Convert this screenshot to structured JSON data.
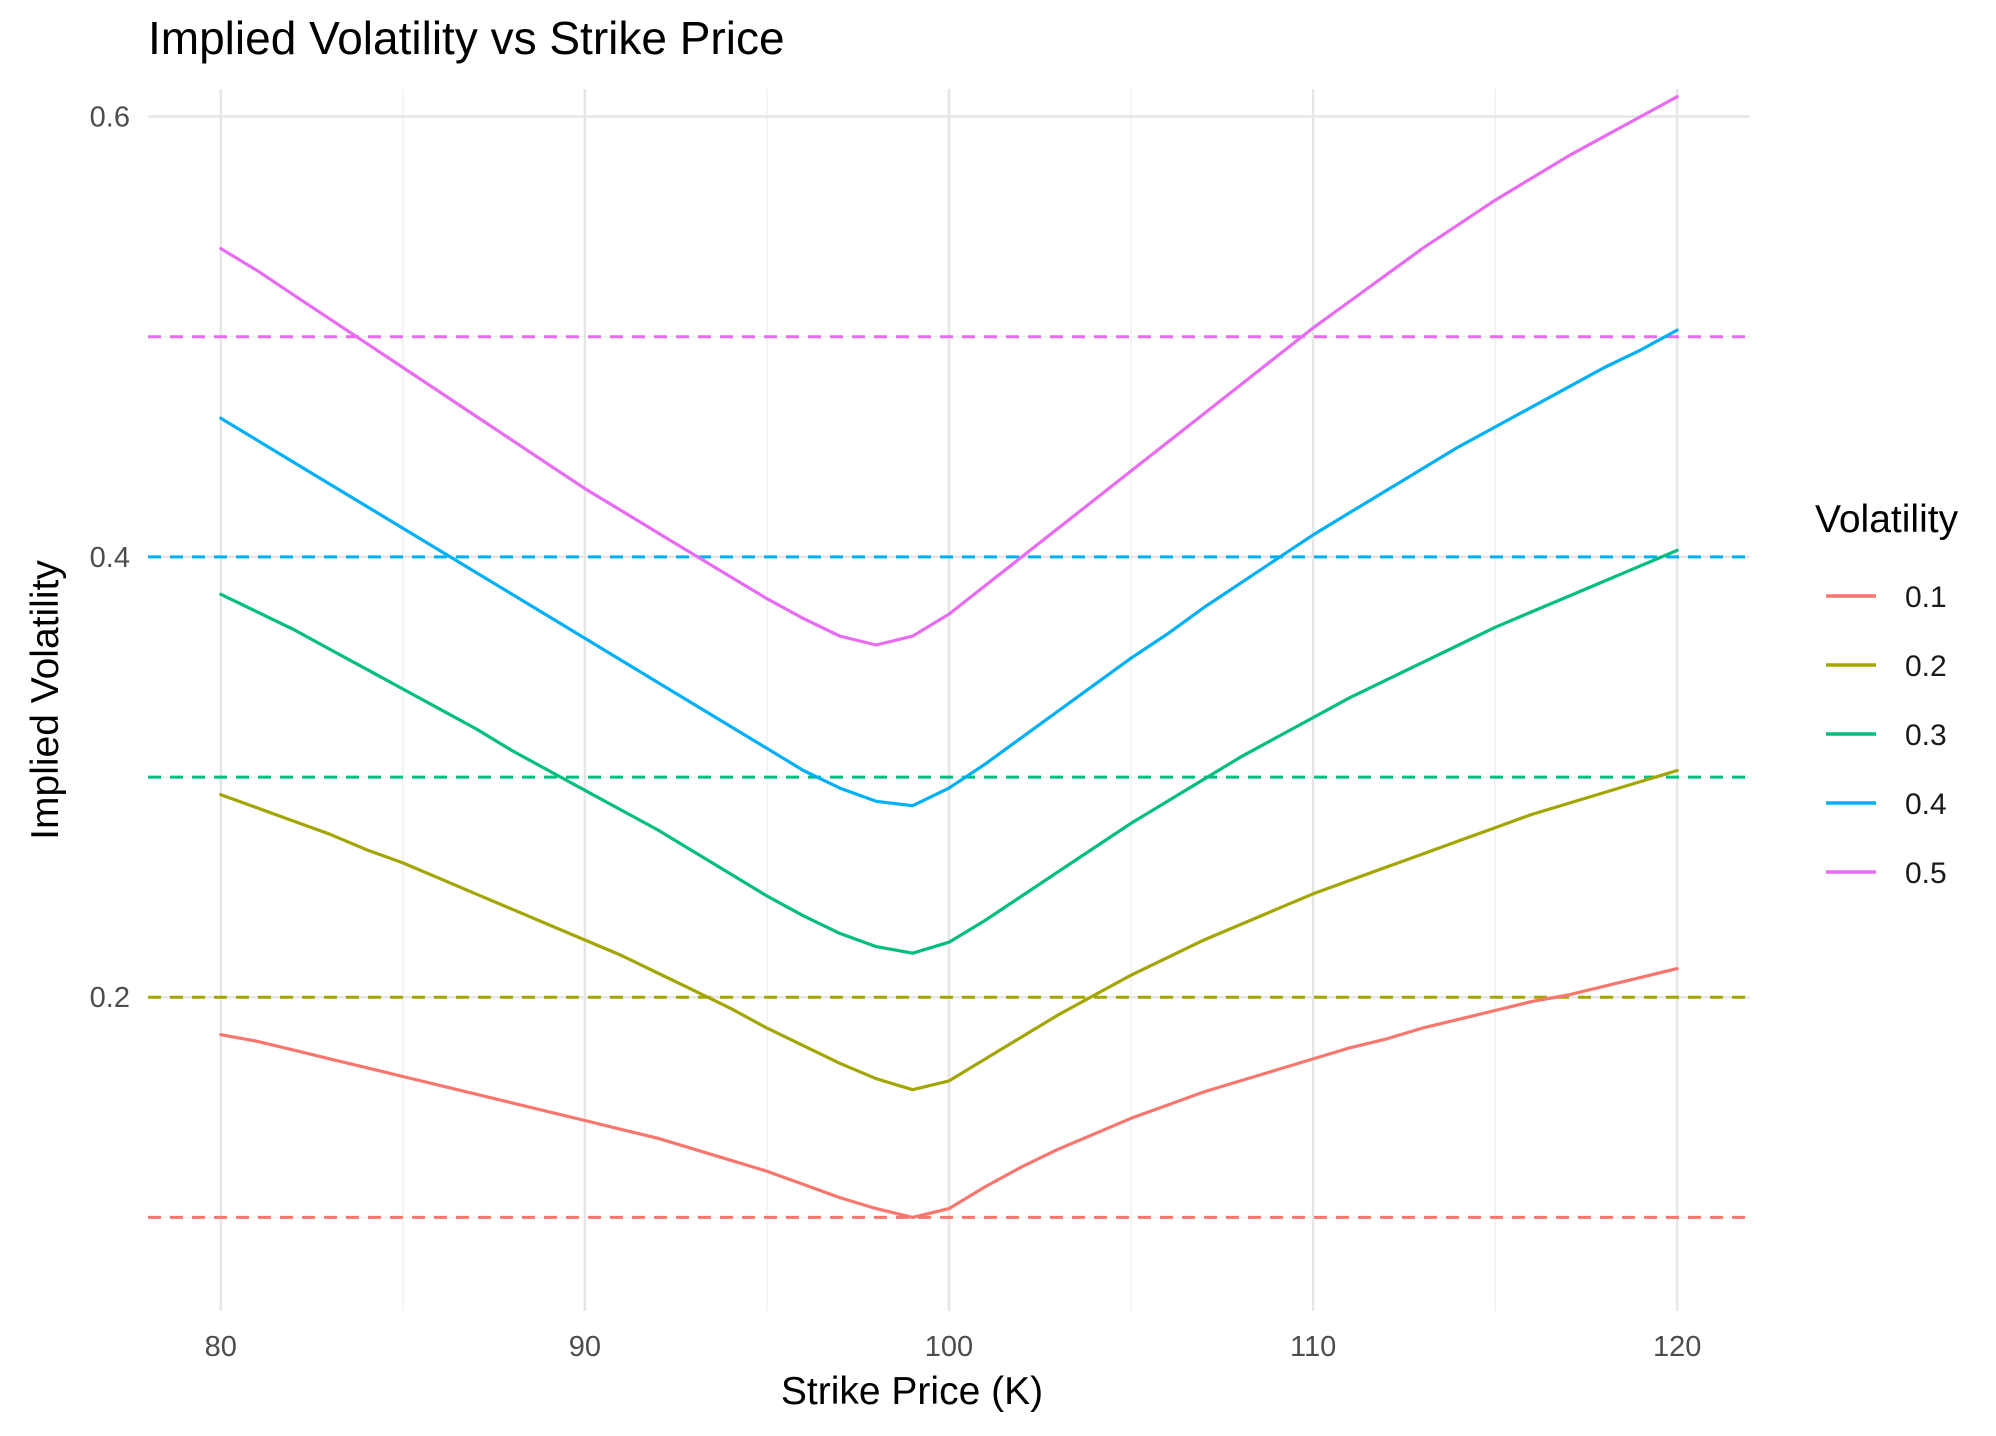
{
  "chart_data": {
    "type": "line",
    "title": "Implied Volatility vs Strike Price",
    "xlabel": "Strike Price (K)",
    "ylabel": "Implied Volatility",
    "xlim": [
      78,
      122
    ],
    "ylim": [
      0.0575,
      0.6125
    ],
    "x_ticks": [
      80,
      90,
      100,
      110,
      120
    ],
    "x_tick_labels": [
      "80",
      "90",
      "100",
      "110",
      "120"
    ],
    "x_minor_ticks": [
      85,
      95,
      105,
      115
    ],
    "y_ticks": [
      0.2,
      0.4,
      0.6
    ],
    "y_tick_labels": [
      "0.2",
      "0.4",
      "0.6"
    ],
    "y_minor_ticks": [
      0.1,
      0.3,
      0.5
    ],
    "grid": true,
    "legend_title": "Volatility",
    "legend_position": "right",
    "series": [
      {
        "name": "0.1",
        "color": "#F8766D",
        "reference_level": 0.1,
        "points": [
          [
            80,
            0.183
          ],
          [
            81,
            0.18
          ],
          [
            82,
            0.176
          ],
          [
            83,
            0.172
          ],
          [
            84,
            0.168
          ],
          [
            85,
            0.164
          ],
          [
            86,
            0.16
          ],
          [
            87,
            0.156
          ],
          [
            88,
            0.152
          ],
          [
            89,
            0.148
          ],
          [
            90,
            0.144
          ],
          [
            91,
            0.14
          ],
          [
            92,
            0.136
          ],
          [
            93,
            0.131
          ],
          [
            94,
            0.126
          ],
          [
            95,
            0.121
          ],
          [
            96,
            0.115
          ],
          [
            97,
            0.109
          ],
          [
            98,
            0.104
          ],
          [
            99,
            0.1
          ],
          [
            100,
            0.104
          ],
          [
            101,
            0.114
          ],
          [
            102,
            0.123
          ],
          [
            103,
            0.131
          ],
          [
            104,
            0.138
          ],
          [
            105,
            0.145
          ],
          [
            106,
            0.151
          ],
          [
            107,
            0.157
          ],
          [
            108,
            0.162
          ],
          [
            109,
            0.167
          ],
          [
            110,
            0.172
          ],
          [
            111,
            0.177
          ],
          [
            112,
            0.181
          ],
          [
            113,
            0.186
          ],
          [
            114,
            0.19
          ],
          [
            115,
            0.194
          ],
          [
            116,
            0.198
          ],
          [
            117,
            0.201
          ],
          [
            118,
            0.205
          ],
          [
            119,
            0.209
          ],
          [
            120,
            0.213
          ]
        ]
      },
      {
        "name": "0.2",
        "color": "#A3A500",
        "reference_level": 0.2,
        "points": [
          [
            80,
            0.292
          ],
          [
            81,
            0.286
          ],
          [
            82,
            0.28
          ],
          [
            83,
            0.274
          ],
          [
            84,
            0.267
          ],
          [
            85,
            0.261
          ],
          [
            86,
            0.254
          ],
          [
            87,
            0.247
          ],
          [
            88,
            0.24
          ],
          [
            89,
            0.233
          ],
          [
            90,
            0.226
          ],
          [
            91,
            0.219
          ],
          [
            92,
            0.211
          ],
          [
            93,
            0.203
          ],
          [
            94,
            0.195
          ],
          [
            95,
            0.186
          ],
          [
            96,
            0.178
          ],
          [
            97,
            0.17
          ],
          [
            98,
            0.163
          ],
          [
            99,
            0.158
          ],
          [
            100,
            0.162
          ],
          [
            101,
            0.172
          ],
          [
            102,
            0.182
          ],
          [
            103,
            0.192
          ],
          [
            104,
            0.201
          ],
          [
            105,
            0.21
          ],
          [
            106,
            0.218
          ],
          [
            107,
            0.226
          ],
          [
            108,
            0.233
          ],
          [
            109,
            0.24
          ],
          [
            110,
            0.247
          ],
          [
            111,
            0.253
          ],
          [
            112,
            0.259
          ],
          [
            113,
            0.265
          ],
          [
            114,
            0.271
          ],
          [
            115,
            0.277
          ],
          [
            116,
            0.283
          ],
          [
            117,
            0.288
          ],
          [
            118,
            0.293
          ],
          [
            119,
            0.298
          ],
          [
            120,
            0.303
          ]
        ]
      },
      {
        "name": "0.3",
        "color": "#00BF7D",
        "reference_level": 0.3,
        "points": [
          [
            80,
            0.383
          ],
          [
            81,
            0.375
          ],
          [
            82,
            0.367
          ],
          [
            83,
            0.358
          ],
          [
            84,
            0.349
          ],
          [
            85,
            0.34
          ],
          [
            86,
            0.331
          ],
          [
            87,
            0.322
          ],
          [
            88,
            0.312
          ],
          [
            89,
            0.303
          ],
          [
            90,
            0.294
          ],
          [
            91,
            0.285
          ],
          [
            92,
            0.276
          ],
          [
            93,
            0.266
          ],
          [
            94,
            0.256
          ],
          [
            95,
            0.246
          ],
          [
            96,
            0.237
          ],
          [
            97,
            0.229
          ],
          [
            98,
            0.223
          ],
          [
            99,
            0.22
          ],
          [
            100,
            0.225
          ],
          [
            101,
            0.235
          ],
          [
            102,
            0.246
          ],
          [
            103,
            0.257
          ],
          [
            104,
            0.268
          ],
          [
            105,
            0.279
          ],
          [
            106,
            0.289
          ],
          [
            107,
            0.299
          ],
          [
            108,
            0.309
          ],
          [
            109,
            0.318
          ],
          [
            110,
            0.327
          ],
          [
            111,
            0.336
          ],
          [
            112,
            0.344
          ],
          [
            113,
            0.352
          ],
          [
            114,
            0.36
          ],
          [
            115,
            0.368
          ],
          [
            116,
            0.375
          ],
          [
            117,
            0.382
          ],
          [
            118,
            0.389
          ],
          [
            119,
            0.396
          ],
          [
            120,
            0.403
          ]
        ]
      },
      {
        "name": "0.4",
        "color": "#00B0F6",
        "reference_level": 0.4,
        "points": [
          [
            80,
            0.463
          ],
          [
            81,
            0.453
          ],
          [
            82,
            0.443
          ],
          [
            83,
            0.433
          ],
          [
            84,
            0.423
          ],
          [
            85,
            0.413
          ],
          [
            86,
            0.403
          ],
          [
            87,
            0.393
          ],
          [
            88,
            0.383
          ],
          [
            89,
            0.373
          ],
          [
            90,
            0.363
          ],
          [
            91,
            0.353
          ],
          [
            92,
            0.343
          ],
          [
            93,
            0.333
          ],
          [
            94,
            0.323
          ],
          [
            95,
            0.313
          ],
          [
            96,
            0.303
          ],
          [
            97,
            0.295
          ],
          [
            98,
            0.289
          ],
          [
            99,
            0.287
          ],
          [
            100,
            0.295
          ],
          [
            101,
            0.306
          ],
          [
            102,
            0.318
          ],
          [
            103,
            0.33
          ],
          [
            104,
            0.342
          ],
          [
            105,
            0.354
          ],
          [
            106,
            0.365
          ],
          [
            107,
            0.377
          ],
          [
            108,
            0.388
          ],
          [
            109,
            0.399
          ],
          [
            110,
            0.41
          ],
          [
            111,
            0.42
          ],
          [
            112,
            0.43
          ],
          [
            113,
            0.44
          ],
          [
            114,
            0.45
          ],
          [
            115,
            0.459
          ],
          [
            116,
            0.468
          ],
          [
            117,
            0.477
          ],
          [
            118,
            0.486
          ],
          [
            119,
            0.494
          ],
          [
            120,
            0.503
          ]
        ]
      },
      {
        "name": "0.5",
        "color": "#E76BF3",
        "reference_level": 0.5,
        "points": [
          [
            80,
            0.54
          ],
          [
            81,
            0.53
          ],
          [
            82,
            0.519
          ],
          [
            83,
            0.508
          ],
          [
            84,
            0.497
          ],
          [
            85,
            0.486
          ],
          [
            86,
            0.475
          ],
          [
            87,
            0.464
          ],
          [
            88,
            0.453
          ],
          [
            89,
            0.442
          ],
          [
            90,
            0.431
          ],
          [
            91,
            0.421
          ],
          [
            92,
            0.411
          ],
          [
            93,
            0.401
          ],
          [
            94,
            0.391
          ],
          [
            95,
            0.381
          ],
          [
            96,
            0.372
          ],
          [
            97,
            0.364
          ],
          [
            98,
            0.36
          ],
          [
            99,
            0.364
          ],
          [
            100,
            0.374
          ],
          [
            101,
            0.387
          ],
          [
            102,
            0.4
          ],
          [
            103,
            0.413
          ],
          [
            104,
            0.426
          ],
          [
            105,
            0.439
          ],
          [
            106,
            0.452
          ],
          [
            107,
            0.465
          ],
          [
            108,
            0.478
          ],
          [
            109,
            0.491
          ],
          [
            110,
            0.504
          ],
          [
            111,
            0.516
          ],
          [
            112,
            0.528
          ],
          [
            113,
            0.54
          ],
          [
            114,
            0.551
          ],
          [
            115,
            0.562
          ],
          [
            116,
            0.572
          ],
          [
            117,
            0.582
          ],
          [
            118,
            0.591
          ],
          [
            119,
            0.6
          ],
          [
            120,
            0.609
          ]
        ]
      }
    ]
  }
}
